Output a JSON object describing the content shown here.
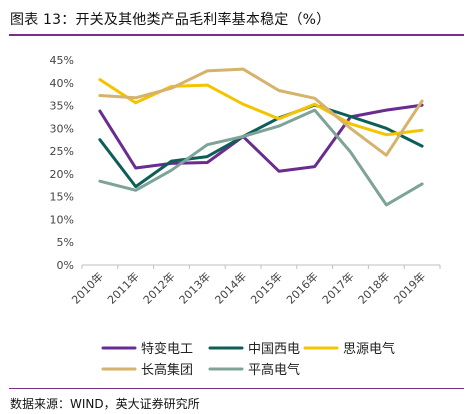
{
  "title": "图表 13：开关及其他类产品毛利率基本稳定（%）",
  "source": "数据来源：WIND，英大证券研究所",
  "chart_data": {
    "type": "line",
    "x": [
      "2010年",
      "2011年",
      "2012年",
      "2013年",
      "2014年",
      "2015年",
      "2016年",
      "2017年",
      "2018年",
      "2019年"
    ],
    "ylim": [
      0,
      45
    ],
    "yticks": [
      "0%",
      "5%",
      "10%",
      "15%",
      "20%",
      "25%",
      "30%",
      "35%",
      "40%",
      "45%"
    ],
    "grid": false,
    "legend_position": "bottom",
    "series": [
      {
        "name": "特变电工",
        "color": "#6a2c91",
        "values": [
          33.8,
          21.3,
          22.3,
          22.5,
          28.2,
          20.6,
          21.6,
          32.5,
          34.0,
          35.1
        ]
      },
      {
        "name": "中国西电",
        "color": "#0e5e58",
        "values": [
          27.5,
          17.2,
          22.8,
          23.8,
          28.2,
          32.3,
          35.1,
          32.6,
          30.0,
          26.1
        ]
      },
      {
        "name": "思源电气",
        "color": "#f5c400",
        "values": [
          40.7,
          35.6,
          39.2,
          39.5,
          35.3,
          32.1,
          35.3,
          31.0,
          28.6,
          29.6
        ]
      },
      {
        "name": "长高集团",
        "color": "#d6b26b",
        "values": [
          37.2,
          36.7,
          38.8,
          42.6,
          43.0,
          38.3,
          36.6,
          30.0,
          24.1,
          36.0
        ]
      },
      {
        "name": "平高电气",
        "color": "#7fa399",
        "values": [
          18.4,
          16.4,
          20.8,
          26.4,
          28.2,
          30.5,
          34.0,
          24.8,
          13.2,
          17.8
        ]
      }
    ]
  }
}
